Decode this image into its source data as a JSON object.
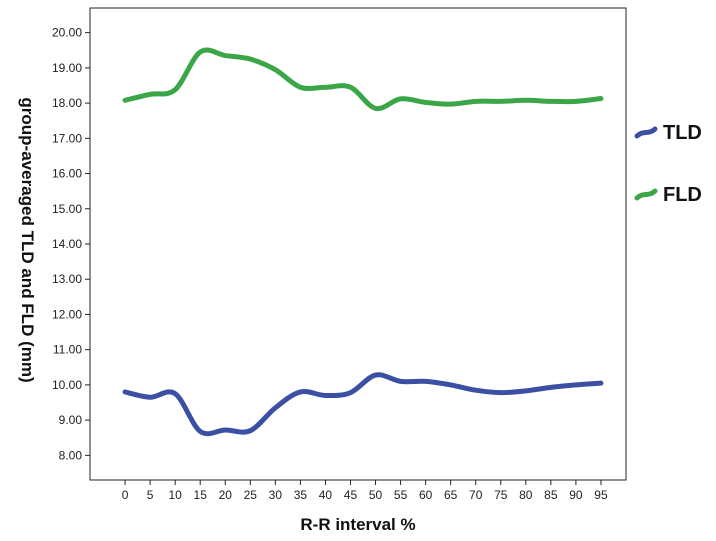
{
  "chart_data": {
    "type": "line",
    "x": [
      0,
      5,
      10,
      15,
      20,
      25,
      30,
      35,
      40,
      45,
      50,
      55,
      60,
      65,
      70,
      75,
      80,
      85,
      90,
      95
    ],
    "x_tick_labels": [
      "0",
      "5",
      "10",
      "15",
      "20",
      "25",
      "30",
      "35",
      "40",
      "45",
      "50",
      "55",
      "60",
      "65",
      "70",
      "75",
      "80",
      "85",
      "90",
      "95"
    ],
    "xlim": [
      -7,
      100
    ],
    "ylim": [
      7.3,
      20.7
    ],
    "y_ticks": [
      8,
      9,
      10,
      11,
      12,
      13,
      14,
      15,
      16,
      17,
      18,
      19,
      20
    ],
    "y_tick_labels": [
      "8.00",
      "9.00",
      "10.00",
      "11.00",
      "12.00",
      "13.00",
      "14.00",
      "15.00",
      "16.00",
      "17.00",
      "18.00",
      "19.00",
      "20.00"
    ],
    "xlabel": "R-R interval %",
    "ylabel": "group-averaged TLD and FLD (mm)",
    "grid": false,
    "legend_position": "right",
    "series": [
      {
        "name": "TLD",
        "color": "#3b4fa3",
        "values": [
          9.8,
          9.65,
          9.75,
          8.68,
          8.72,
          8.7,
          9.35,
          9.8,
          9.7,
          9.78,
          10.28,
          10.1,
          10.1,
          10.0,
          9.85,
          9.78,
          9.83,
          9.93,
          10.0,
          10.05
        ]
      },
      {
        "name": "FLD",
        "color": "#3aa647",
        "values": [
          18.08,
          18.25,
          18.38,
          19.45,
          19.35,
          19.25,
          18.95,
          18.45,
          18.45,
          18.45,
          17.85,
          18.12,
          18.02,
          17.97,
          18.05,
          18.05,
          18.08,
          18.05,
          18.05,
          18.13
        ]
      }
    ]
  }
}
